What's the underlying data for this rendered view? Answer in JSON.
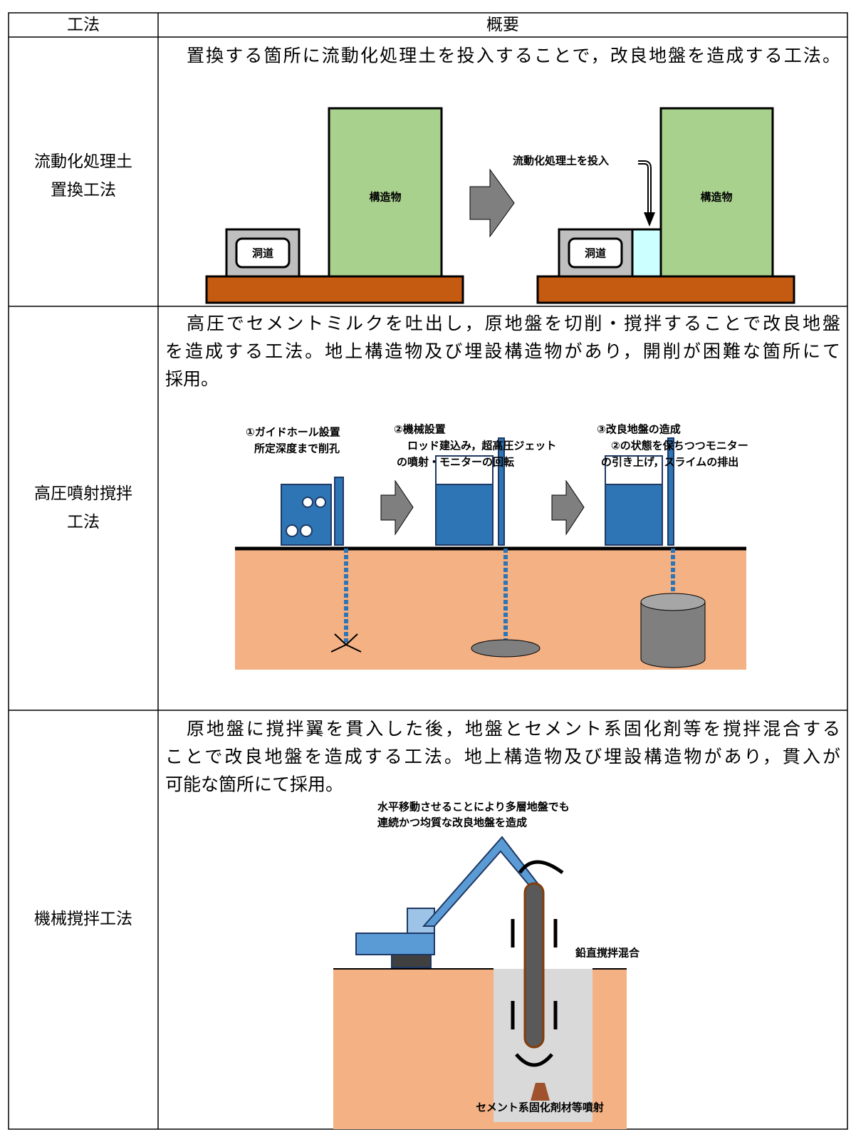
{
  "table": {
    "header": [
      "工法",
      "概要"
    ],
    "rows": [
      {
        "method": [
          "流動化処理土",
          "置換工法"
        ],
        "description": [
          "置換する箇所に流動化処理土を投入することで，改良地盤を造成する工法。"
        ],
        "figure": {
          "structure_before": "構造物",
          "culvert_before": "洞道",
          "structure_after": "構造物",
          "culvert_after": "洞道",
          "note": "流動化処理土を投入"
        }
      },
      {
        "method": [
          "高圧噴射撹拌",
          "工法"
        ],
        "description": [
          "高圧でセメントミルクを吐出し，原地盤を切削・撹拌することで改良地盤",
          "を造成する工法。地上構造物及び埋設構造物があり，開削が困難な箇所にて",
          "採用。"
        ],
        "figure": {
          "steps": [
            [
              "①ガイドホール設置",
              "所定深度まで削孔"
            ],
            [
              "②機械設置",
              "ロッド建込み，超高圧ジェット",
              "の噴射・モニターの回転"
            ],
            [
              "③改良地盤の造成",
              "②の状態を保ちつつモニター",
              "の引き上げ，スライムの排出"
            ]
          ]
        }
      },
      {
        "method": [
          "機械撹拌工法"
        ],
        "description": [
          "原地盤に撹拌翼を貫入した後，地盤とセメント系固化剤等を撹拌混合する",
          "ことで改良地盤を造成する工法。地上構造物及び埋設構造物があり，貫入が",
          "可能な箇所にて採用。"
        ],
        "figure": {
          "caption": [
            "水平移動させることにより多層地盤でも",
            "連続かつ均質な改良地盤を造成"
          ],
          "mixing": "鉛直撹拌混合",
          "injection": "セメント系固化剤材等噴射"
        }
      }
    ]
  }
}
